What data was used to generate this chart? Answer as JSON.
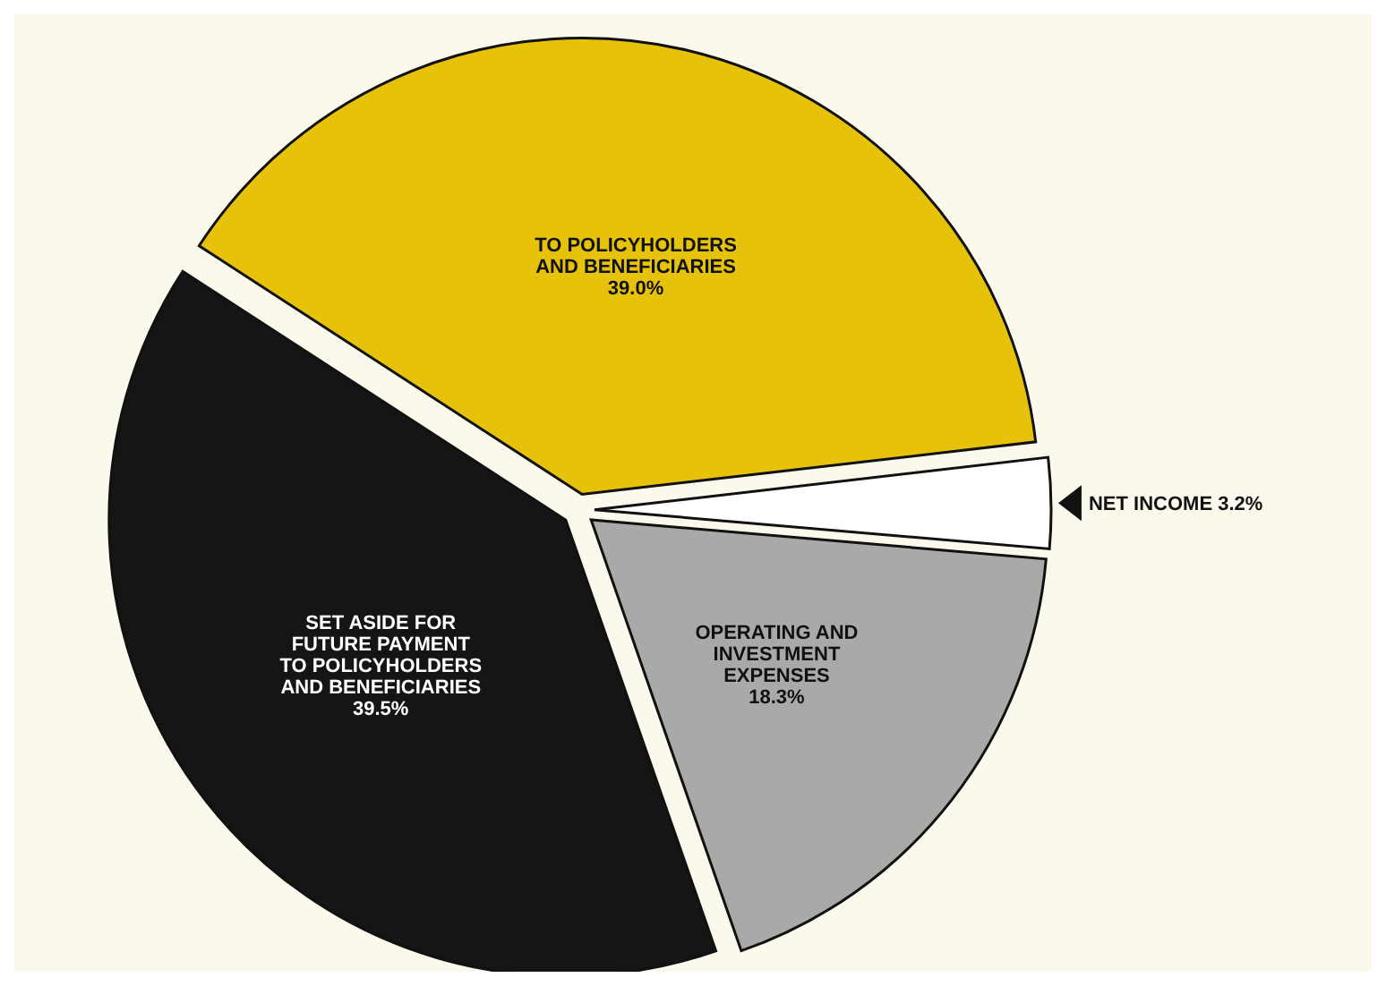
{
  "chart_data": {
    "type": "pie",
    "categories": [
      "TO POLICYHOLDERS\nAND BENEFICIARIES",
      "NET INCOME",
      "OPERATING AND\nINVESTMENT\nEXPENSES",
      "SET ASIDE FOR\nFUTURE PAYMENT\nTO POLICYHOLDERS\nAND BENEFICIARIES"
    ],
    "values": [
      39.0,
      3.2,
      18.3,
      39.5
    ],
    "value_labels": [
      "39.0%",
      "3.2%",
      "18.3%",
      "39.5%"
    ],
    "colors": [
      "#e6c20a",
      "#ffffff",
      "#a9a9a7",
      "#151515"
    ]
  }
}
